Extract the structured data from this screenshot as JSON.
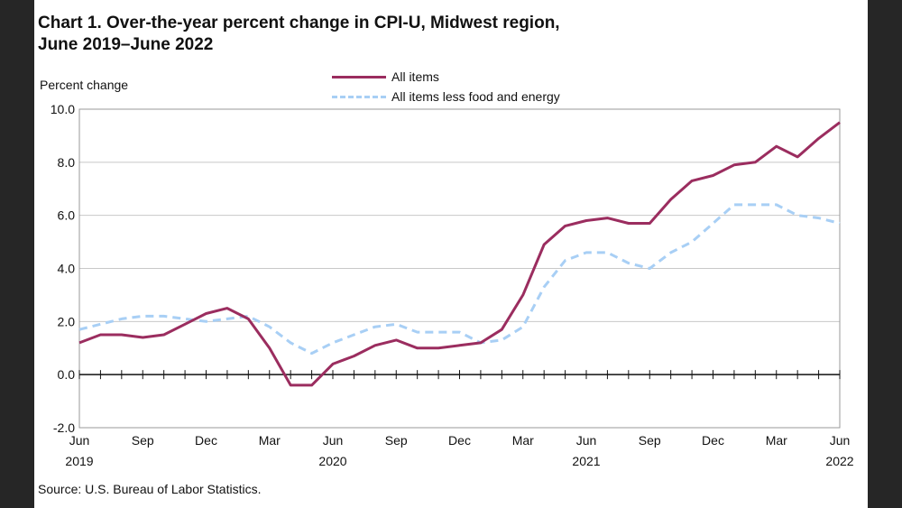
{
  "chart_data": {
    "type": "line",
    "title_line1": "Chart 1. Over-the-year percent change in CPI-U, Midwest region,",
    "title_line2": "June 2019–June 2022",
    "ylabel": "Percent change",
    "xlabel": "",
    "source": "Source: U.S. Bureau of Labor Statistics.",
    "ylim": [
      -2.0,
      10.0
    ],
    "yticks": [
      -2.0,
      0.0,
      2.0,
      4.0,
      6.0,
      8.0,
      10.0
    ],
    "ytick_labels": [
      "-2.0",
      "0.0",
      "2.0",
      "4.0",
      "6.0",
      "8.0",
      "10.0"
    ],
    "x": [
      "Jun 2019",
      "Jul 2019",
      "Aug 2019",
      "Sep 2019",
      "Oct 2019",
      "Nov 2019",
      "Dec 2019",
      "Jan 2020",
      "Feb 2020",
      "Mar 2020",
      "Apr 2020",
      "May 2020",
      "Jun 2020",
      "Jul 2020",
      "Aug 2020",
      "Sep 2020",
      "Oct 2020",
      "Nov 2020",
      "Dec 2020",
      "Jan 2021",
      "Feb 2021",
      "Mar 2021",
      "Apr 2021",
      "May 2021",
      "Jun 2021",
      "Jul 2021",
      "Aug 2021",
      "Sep 2021",
      "Oct 2021",
      "Nov 2021",
      "Dec 2021",
      "Jan 2022",
      "Feb 2022",
      "Mar 2022",
      "Apr 2022",
      "May 2022",
      "Jun 2022"
    ],
    "xtick_labels": [
      {
        "month": "Jun",
        "year": "2019"
      },
      {
        "month": "Sep",
        "year": ""
      },
      {
        "month": "Dec",
        "year": ""
      },
      {
        "month": "Mar",
        "year": ""
      },
      {
        "month": "Jun",
        "year": "2020"
      },
      {
        "month": "Sep",
        "year": ""
      },
      {
        "month": "Dec",
        "year": ""
      },
      {
        "month": "Mar",
        "year": ""
      },
      {
        "month": "Jun",
        "year": "2021"
      },
      {
        "month": "Sep",
        "year": ""
      },
      {
        "month": "Dec",
        "year": ""
      },
      {
        "month": "Mar",
        "year": ""
      },
      {
        "month": "Jun",
        "year": "2022"
      }
    ],
    "grid": true,
    "legend_position": "top-center",
    "series": [
      {
        "name": "All items",
        "color": "#9b2d5f",
        "style": "solid",
        "values": [
          1.2,
          1.5,
          1.5,
          1.4,
          1.5,
          1.9,
          2.3,
          2.5,
          2.1,
          1.0,
          -0.4,
          -0.4,
          0.4,
          0.7,
          1.1,
          1.3,
          1.0,
          1.0,
          1.1,
          1.2,
          1.7,
          3.0,
          4.9,
          5.6,
          5.8,
          5.9,
          5.7,
          5.7,
          6.6,
          7.3,
          7.5,
          7.9,
          8.0,
          8.6,
          8.2,
          8.9,
          9.5
        ]
      },
      {
        "name": "All items less food and energy",
        "color": "#a8cff5",
        "style": "dashed",
        "values": [
          1.7,
          1.9,
          2.1,
          2.2,
          2.2,
          2.1,
          2.0,
          2.1,
          2.2,
          1.8,
          1.2,
          0.8,
          1.2,
          1.5,
          1.8,
          1.9,
          1.6,
          1.6,
          1.6,
          1.2,
          1.3,
          1.8,
          3.3,
          4.3,
          4.6,
          4.6,
          4.2,
          4.0,
          4.6,
          5.0,
          5.7,
          6.4,
          6.4,
          6.4,
          6.0,
          5.9,
          5.7
        ]
      }
    ]
  }
}
